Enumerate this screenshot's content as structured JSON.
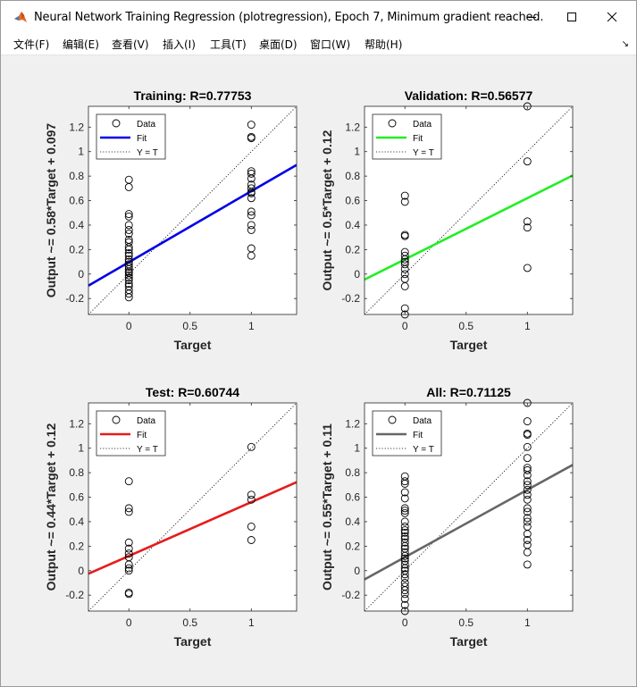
{
  "window": {
    "title": "Neural Network Training Regression (plotregression), Epoch 7, Minimum gradient reached.",
    "icon": "matlab-logo-icon",
    "controls": [
      "minimize-icon",
      "maximize-icon",
      "close-icon"
    ]
  },
  "menu": {
    "items": [
      "文件(F)",
      "编辑(E)",
      "查看(V)",
      "插入(I)",
      "工具(T)",
      "桌面(D)",
      "窗口(W)",
      "帮助(H)"
    ],
    "dock_glyph": "↘"
  },
  "chart_data": [
    {
      "type": "scatter",
      "title": "Training: R=0.77753",
      "xlabel": "Target",
      "ylabel": "Output ~= 0.58*Target + 0.097",
      "xlim": [
        -0.33,
        1.37
      ],
      "ylim": [
        -0.33,
        1.37
      ],
      "xticks": [
        "0",
        "0.5",
        "1"
      ],
      "yticks": [
        "-0.2",
        "0",
        "0.2",
        "0.4",
        "0.6",
        "0.8",
        "1",
        "1.2"
      ],
      "fit": {
        "slope": 0.58,
        "intercept": 0.097,
        "color": "#0000e6"
      },
      "legend": [
        "Data",
        "Fit",
        "Y = T"
      ],
      "legend_position": "top-left",
      "x0_outputs": [
        0.77,
        0.71,
        0.49,
        0.47,
        0.4,
        0.36,
        0.33,
        0.28,
        0.26,
        0.22,
        0.2,
        0.17,
        0.15,
        0.12,
        0.1,
        0.08,
        0.06,
        0.04,
        0.02,
        0.01,
        -0.01,
        -0.03,
        -0.05,
        -0.08,
        -0.1,
        -0.13,
        -0.16,
        -0.19
      ],
      "x1_outputs": [
        1.22,
        1.12,
        1.11,
        0.84,
        0.82,
        0.78,
        0.73,
        0.7,
        0.67,
        0.66,
        0.62,
        0.51,
        0.48,
        0.4,
        0.36,
        0.21,
        0.15
      ]
    },
    {
      "type": "scatter",
      "title": "Validation: R=0.56577",
      "xlabel": "Target",
      "ylabel": "Output ~= 0.5*Target + 0.12",
      "xlim": [
        -0.33,
        1.37
      ],
      "ylim": [
        -0.33,
        1.37
      ],
      "xticks": [
        "0",
        "0.5",
        "1"
      ],
      "yticks": [
        "-0.2",
        "0",
        "0.2",
        "0.4",
        "0.6",
        "0.8",
        "1",
        "1.2"
      ],
      "fit": {
        "slope": 0.5,
        "intercept": 0.12,
        "color": "#22ee22"
      },
      "legend": [
        "Data",
        "Fit",
        "Y = T"
      ],
      "legend_position": "top-left",
      "x0_outputs": [
        0.64,
        0.59,
        0.32,
        0.31,
        0.18,
        0.15,
        0.12,
        0.1,
        0.08,
        0.04,
        0.0,
        -0.04,
        -0.1,
        -0.28,
        -0.33
      ],
      "x1_outputs": [
        1.37,
        0.92,
        0.43,
        0.38,
        0.05
      ]
    },
    {
      "type": "scatter",
      "title": "Test: R=0.60744",
      "xlabel": "Target",
      "ylabel": "Output ~= 0.44*Target + 0.12",
      "xlim": [
        -0.33,
        1.37
      ],
      "ylim": [
        -0.33,
        1.37
      ],
      "xticks": [
        "0",
        "0.5",
        "1"
      ],
      "yticks": [
        "-0.2",
        "0",
        "0.2",
        "0.4",
        "0.6",
        "0.8",
        "1",
        "1.2"
      ],
      "fit": {
        "slope": 0.44,
        "intercept": 0.12,
        "color": "#e61c1c"
      },
      "legend": [
        "Data",
        "Fit",
        "Y = T"
      ],
      "legend_position": "top-left",
      "x0_outputs": [
        0.73,
        0.51,
        0.48,
        0.23,
        0.18,
        0.14,
        0.11,
        0.05,
        0.02,
        0.0,
        -0.18,
        -0.19
      ],
      "x1_outputs": [
        1.01,
        0.62,
        0.58,
        0.36,
        0.25
      ]
    },
    {
      "type": "scatter",
      "title": "All: R=0.71125",
      "xlabel": "Target",
      "ylabel": "Output ~= 0.55*Target + 0.11",
      "xlim": [
        -0.33,
        1.37
      ],
      "ylim": [
        -0.33,
        1.37
      ],
      "xticks": [
        "0",
        "0.5",
        "1"
      ],
      "yticks": [
        "-0.2",
        "0",
        "0.2",
        "0.4",
        "0.6",
        "0.8",
        "1",
        "1.2"
      ],
      "fit": {
        "slope": 0.55,
        "intercept": 0.11,
        "color": "#666666"
      },
      "legend": [
        "Data",
        "Fit",
        "Y = T"
      ],
      "legend_position": "top-left",
      "x0_outputs": [
        0.77,
        0.73,
        0.71,
        0.64,
        0.59,
        0.51,
        0.49,
        0.47,
        0.4,
        0.36,
        0.33,
        0.31,
        0.28,
        0.26,
        0.23,
        0.2,
        0.18,
        0.15,
        0.12,
        0.1,
        0.08,
        0.05,
        0.02,
        0.0,
        -0.03,
        -0.06,
        -0.1,
        -0.13,
        -0.16,
        -0.19,
        -0.23,
        -0.28,
        -0.33
      ],
      "x1_outputs": [
        1.37,
        1.22,
        1.12,
        1.11,
        1.01,
        0.92,
        0.84,
        0.82,
        0.78,
        0.73,
        0.7,
        0.66,
        0.62,
        0.58,
        0.51,
        0.48,
        0.43,
        0.4,
        0.36,
        0.3,
        0.25,
        0.21,
        0.15,
        0.05
      ]
    }
  ]
}
